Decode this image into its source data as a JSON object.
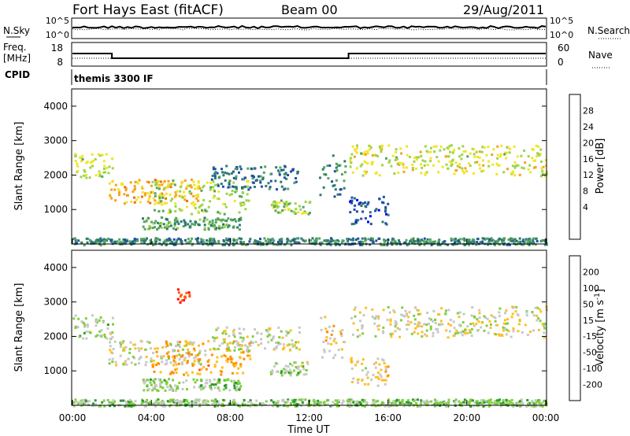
{
  "header": {
    "station": "Fort Hays East (fitACF)",
    "beam": "Beam 00",
    "date": "29/Aug/2011"
  },
  "noise_panel": {
    "left_label": "N.Sky",
    "left_ticks": [
      "10^5",
      "10^0"
    ],
    "right_ticks": [
      "10^5",
      "10^0"
    ],
    "right_label": "N.Search"
  },
  "freq_panel": {
    "left_label_1": "Freq.",
    "left_label_2": "[MHz]",
    "left_ticks": [
      "18",
      "8"
    ],
    "right_ticks": [
      "60",
      "0"
    ],
    "right_label": "Nave",
    "freq_steps": [
      {
        "t_start": 0,
        "t_end": 2,
        "value": 14
      },
      {
        "t_start": 2,
        "t_end": 14,
        "value": 11
      },
      {
        "t_start": 14,
        "t_end": 24,
        "value": 14
      }
    ]
  },
  "cpid": {
    "label": "CPID",
    "program": "themis 3300 IF"
  },
  "chart_data": [
    {
      "type": "heatmap",
      "panel": "power",
      "ylabel": "Slant Range [km]",
      "xlabel": "Time UT",
      "ylim": [
        0,
        4500
      ],
      "xlim": [
        0,
        24
      ],
      "yticks": [
        "4000",
        "3000",
        "2000",
        "1000"
      ],
      "xticks": [
        "00:00",
        "04:00",
        "08:00",
        "12:00",
        "16:00",
        "20:00",
        "00:00"
      ],
      "colorbar": {
        "label": "Power [dB]",
        "ticks": [
          "28",
          "24",
          "20",
          "16",
          "12",
          "8",
          "4"
        ],
        "colors": [
          "#0000ff",
          "#1f4fa8",
          "#2f7a6e",
          "#55a560",
          "#9cd54a",
          "#f0e52a",
          "#f7a21c",
          "#f26a14",
          "#ff0000"
        ]
      },
      "bands": [
        {
          "t0": 0.0,
          "t1": 2.0,
          "r0": 1950,
          "r1": 2650,
          "value": 18
        },
        {
          "t0": 1.8,
          "t1": 6.5,
          "r0": 1200,
          "r1": 1900,
          "value": 22
        },
        {
          "t0": 4.0,
          "t1": 9.0,
          "r0": 900,
          "r1": 1900,
          "value": 16
        },
        {
          "t0": 3.5,
          "t1": 8.5,
          "r0": 450,
          "r1": 800,
          "value": 12
        },
        {
          "t0": 7.0,
          "t1": 11.5,
          "r0": 1600,
          "r1": 2300,
          "value": 8
        },
        {
          "t0": 10.0,
          "t1": 12.0,
          "r0": 900,
          "r1": 1300,
          "value": 16
        },
        {
          "t0": 12.5,
          "t1": 13.8,
          "r0": 1400,
          "r1": 2600,
          "value": 10
        },
        {
          "t0": 14.0,
          "t1": 24.0,
          "r0": 2000,
          "r1": 2900,
          "value": 18
        },
        {
          "t0": 14.0,
          "t1": 16.0,
          "r0": 600,
          "r1": 1400,
          "value": 6
        },
        {
          "t0": 0.0,
          "t1": 24.0,
          "r0": 0,
          "r1": 200,
          "value": 10
        }
      ]
    },
    {
      "type": "heatmap",
      "panel": "velocity",
      "ylabel": "Slant Range [km]",
      "xlabel": "Time UT",
      "ylim": [
        0,
        4500
      ],
      "xlim": [
        0,
        24
      ],
      "yticks": [
        "4000",
        "3000",
        "2000",
        "1000"
      ],
      "xticks": [
        "00:00",
        "04:00",
        "08:00",
        "12:00",
        "16:00",
        "20:00",
        "00:00"
      ],
      "colorbar": {
        "label": "Velocity [m s^-1]",
        "ticks": [
          "200",
          "100",
          "50",
          "15",
          "-15",
          "-50",
          "-100",
          "-200"
        ],
        "colors": [
          "#ff0000",
          "#ff5a1a",
          "#ff8c00",
          "#ffbf20",
          "#c8c8c8",
          "#7fd03f",
          "#2f9a2f",
          "#3c6acb",
          "#0000d0"
        ]
      },
      "bands": [
        {
          "t0": 0.0,
          "t1": 2.0,
          "r0": 1950,
          "r1": 2650,
          "value": -30
        },
        {
          "t0": 1.8,
          "t1": 6.5,
          "r0": 1200,
          "r1": 1900,
          "value": 0
        },
        {
          "t0": 4.0,
          "t1": 9.0,
          "r0": 900,
          "r1": 1900,
          "value": 80
        },
        {
          "t0": 3.5,
          "t1": 8.5,
          "r0": 450,
          "r1": 800,
          "value": -40
        },
        {
          "t0": 7.0,
          "t1": 11.5,
          "r0": 1600,
          "r1": 2300,
          "value": 0
        },
        {
          "t0": 10.0,
          "t1": 12.0,
          "r0": 900,
          "r1": 1300,
          "value": -30
        },
        {
          "t0": 12.5,
          "t1": 13.8,
          "r0": 1400,
          "r1": 2600,
          "value": 40
        },
        {
          "t0": 14.0,
          "t1": 24.0,
          "r0": 2000,
          "r1": 2900,
          "value": 0
        },
        {
          "t0": 14.0,
          "t1": 16.0,
          "r0": 600,
          "r1": 1400,
          "value": 30
        },
        {
          "t0": 5.3,
          "t1": 5.9,
          "r0": 3000,
          "r1": 3400,
          "value": 200
        },
        {
          "t0": 0.0,
          "t1": 24.0,
          "r0": 0,
          "r1": 200,
          "value": -50
        }
      ]
    }
  ]
}
